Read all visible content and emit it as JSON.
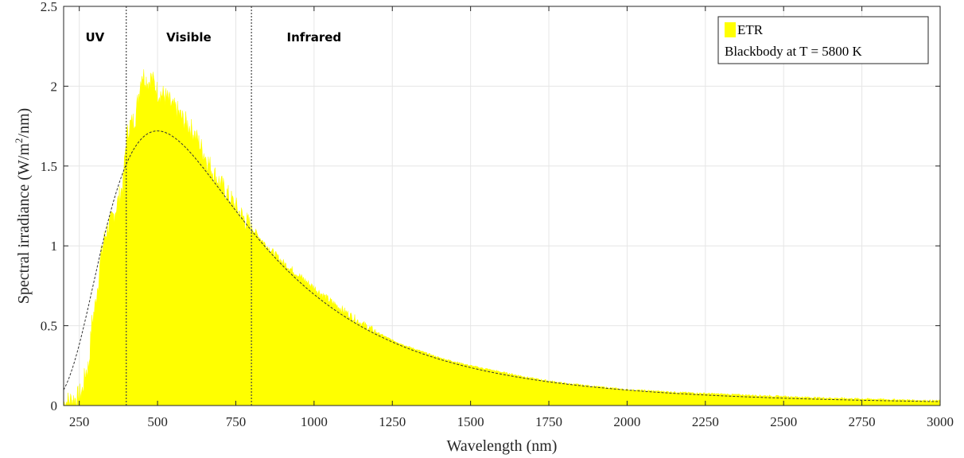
{
  "chart_data": {
    "type": "area",
    "title": "",
    "xlabel": "Wavelength (nm)",
    "ylabel_main": "Spectral irradiance (W/m",
    "ylabel_sup": "2",
    "ylabel_tail": "/nm)",
    "xlim": [
      200,
      3000
    ],
    "ylim": [
      0,
      2.5
    ],
    "grid": true,
    "x_ticks": [
      250,
      500,
      750,
      1000,
      1250,
      1500,
      1750,
      2000,
      2250,
      2500,
      2750,
      3000
    ],
    "x_tick_labels": [
      "250",
      "500",
      "750",
      "1000",
      "1250",
      "1500",
      "1750",
      "2000",
      "2250",
      "2500",
      "2750",
      "3000"
    ],
    "y_ticks": [
      0,
      0.5,
      1,
      1.5,
      2,
      2.5
    ],
    "y_tick_labels": [
      "0",
      "0.5",
      "1",
      "1.5",
      "2",
      "2.5"
    ],
    "legend_position": "top-right",
    "colors": {
      "etr_fill": "#ffff00",
      "blackbody_line": "#333333",
      "grid": "#e6e6e6",
      "region_divider": "#444444"
    },
    "region_boundaries": [
      400,
      800
    ],
    "region_labels": [
      {
        "label": "UV",
        "x": 300
      },
      {
        "label": "Visible",
        "x": 600
      },
      {
        "label": "Infrared",
        "x": 1000
      }
    ],
    "series": [
      {
        "name": "ETR",
        "style": "filled-area",
        "x": [
          200,
          220,
          240,
          260,
          270,
          280,
          290,
          300,
          310,
          320,
          330,
          340,
          350,
          360,
          370,
          380,
          390,
          400,
          410,
          420,
          430,
          440,
          450,
          460,
          470,
          480,
          490,
          500,
          510,
          520,
          530,
          540,
          550,
          560,
          570,
          580,
          600,
          620,
          640,
          660,
          680,
          700,
          720,
          740,
          760,
          780,
          800,
          820,
          850,
          880,
          900,
          950,
          1000,
          1050,
          1100,
          1150,
          1200,
          1250,
          1300,
          1400,
          1500,
          1600,
          1700,
          1800,
          1900,
          2000,
          2200,
          2400,
          2600,
          2800,
          3000
        ],
        "values": [
          0.02,
          0.04,
          0.05,
          0.1,
          0.22,
          0.25,
          0.52,
          0.62,
          0.78,
          0.95,
          1.05,
          1.12,
          1.15,
          1.2,
          1.26,
          1.33,
          1.4,
          1.68,
          1.76,
          1.78,
          1.82,
          1.96,
          2.09,
          2.06,
          2.03,
          2.06,
          2.02,
          1.97,
          1.96,
          1.95,
          1.93,
          1.9,
          1.87,
          1.86,
          1.83,
          1.8,
          1.76,
          1.7,
          1.62,
          1.54,
          1.46,
          1.4,
          1.34,
          1.28,
          1.22,
          1.17,
          1.12,
          1.07,
          1.0,
          0.94,
          0.9,
          0.82,
          0.74,
          0.66,
          0.59,
          0.52,
          0.46,
          0.41,
          0.37,
          0.3,
          0.25,
          0.21,
          0.17,
          0.14,
          0.12,
          0.1,
          0.08,
          0.065,
          0.05,
          0.04,
          0.03
        ]
      },
      {
        "name": "Blackbody at T = 5800 K",
        "style": "dashed-line",
        "temperature_K": 5800,
        "peak_value": 1.72
      }
    ]
  }
}
